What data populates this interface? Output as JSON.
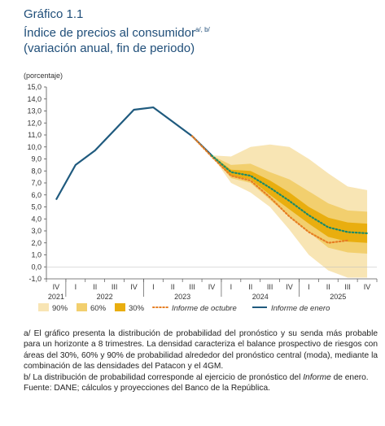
{
  "header": {
    "figure_number": "Gráfico 1.1",
    "title": "Índice de precios al consumidor",
    "title_superscript": "a/, b/",
    "subtitle": "(variación anual, fin de periodo)"
  },
  "chart_data": {
    "type": "line",
    "unit_label": "(porcentaje)",
    "ylim": [
      -1.0,
      15.0
    ],
    "y_ticks": [
      "15,0",
      "14,0",
      "13,0",
      "12,0",
      "11,0",
      "10,0",
      "9,0",
      "8,0",
      "7,0",
      "6,0",
      "5,0",
      "4,0",
      "3,0",
      "2,0",
      "1,0",
      "0,0",
      "-1,0"
    ],
    "quarters": [
      "IV",
      "I",
      "II",
      "III",
      "IV",
      "I",
      "II",
      "III",
      "IV",
      "I",
      "II",
      "III",
      "IV",
      "I",
      "II",
      "III",
      "IV"
    ],
    "quarter_tick_labels": [
      "IV",
      "I",
      "II",
      "III",
      "IV",
      "I",
      "II",
      "III",
      "IV",
      "I",
      "II",
      "III",
      "IV",
      "I",
      "II",
      "III",
      "IV"
    ],
    "year_labels": [
      {
        "label": "2021",
        "index": 0
      },
      {
        "label": "2022",
        "index": 2.5
      },
      {
        "label": "2023",
        "index": 6.5
      },
      {
        "label": "2024",
        "index": 10.5
      },
      {
        "label": "2025",
        "index": 14.5
      }
    ],
    "series": [
      {
        "name": "Informe de enero",
        "color": "#1f5a7e",
        "style": "solid",
        "x": [
          0,
          1,
          2,
          3,
          4,
          5,
          6,
          7,
          8
        ],
        "y": [
          5.6,
          8.5,
          9.7,
          11.4,
          13.1,
          13.3,
          12.1,
          10.9,
          9.3
        ]
      },
      {
        "name": "Informe de octubre",
        "color": "#e67e22",
        "style": "dotted",
        "x": [
          7,
          8,
          9,
          10,
          11,
          12,
          13,
          14,
          15
        ],
        "y": [
          10.9,
          9.2,
          7.6,
          7.2,
          5.8,
          4.2,
          2.9,
          2.0,
          2.2
        ]
      },
      {
        "name": "Pronóstico central (moda)",
        "color": "#1a8a6a",
        "style": "dotted",
        "x": [
          8,
          9,
          10,
          11,
          12,
          13,
          14,
          15,
          16
        ],
        "y": [
          9.3,
          7.9,
          7.6,
          6.6,
          5.5,
          4.3,
          3.3,
          2.9,
          2.8
        ]
      }
    ],
    "fan_bands": [
      {
        "name": "90%",
        "color": "#f8e5b4",
        "x": [
          8,
          9,
          10,
          11,
          12,
          13,
          14,
          15,
          16
        ],
        "lower": [
          9.3,
          7.0,
          6.2,
          5.0,
          3.1,
          1.0,
          -0.3,
          -0.9,
          -0.9
        ],
        "upper": [
          9.3,
          9.2,
          10.0,
          10.2,
          10.0,
          9.0,
          7.8,
          6.7,
          6.4
        ]
      },
      {
        "name": "60%",
        "color": "#f2cf6e",
        "x": [
          8,
          9,
          10,
          11,
          12,
          13,
          14,
          15,
          16
        ],
        "lower": [
          9.3,
          7.4,
          7.0,
          5.6,
          4.2,
          2.9,
          1.6,
          1.2,
          1.1
        ],
        "upper": [
          9.3,
          8.5,
          8.6,
          7.9,
          7.3,
          6.3,
          5.3,
          4.7,
          4.6
        ]
      },
      {
        "name": "30%",
        "color": "#e9ae0f",
        "x": [
          8,
          9,
          10,
          11,
          12,
          13,
          14,
          15,
          16
        ],
        "lower": [
          9.3,
          7.6,
          7.3,
          6.0,
          4.8,
          3.6,
          2.5,
          2.1,
          2.0
        ],
        "upper": [
          9.3,
          8.1,
          8.0,
          7.2,
          6.2,
          5.0,
          4.1,
          3.7,
          3.6
        ]
      }
    ],
    "legend": [
      {
        "label": "90%",
        "kind": "swatch",
        "color": "#f8e5b4"
      },
      {
        "label": "60%",
        "kind": "swatch",
        "color": "#f2cf6e"
      },
      {
        "label": "30%",
        "kind": "swatch",
        "color": "#e9ae0f"
      },
      {
        "label": "Informe de octubre",
        "kind": "dotted",
        "color": "#e67e22"
      },
      {
        "label": "Informe de enero",
        "kind": "solid",
        "color": "#1f5a7e"
      }
    ],
    "grid": false,
    "legend_position": "bottom"
  },
  "notes": {
    "a": "a/ El gráfico presenta la distribución de probabilidad del pronóstico y su senda más probable para un horizonte a 8 trimestres. La densidad caracteriza el balance prospectivo de riesgos con áreas del 30%, 60% y 90% de probabilidad alrededor del pronóstico central (moda), mediante la combinación de las densidades del Patacon y el 4GM.",
    "b_prefix": "b/ La distribución de probabilidad corresponde al ejercicio de pronóstico del ",
    "b_emph": "Informe",
    "b_suffix": " de enero.",
    "source": "Fuente: DANE; cálculos y proyecciones del Banco de la República."
  }
}
